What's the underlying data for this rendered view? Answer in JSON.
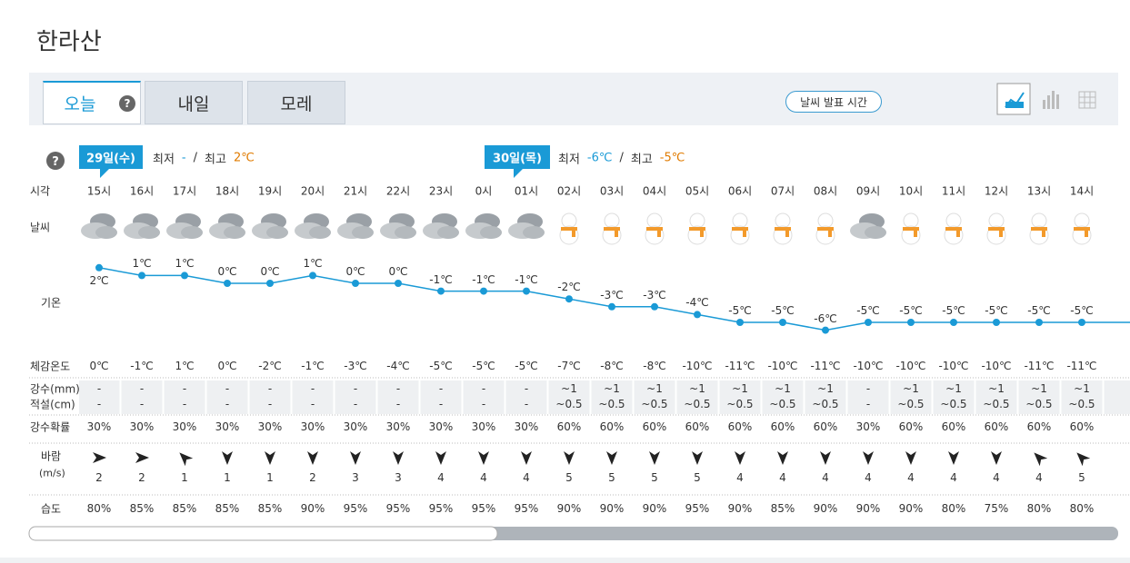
{
  "title": "한라산",
  "tabs": [
    "오늘",
    "내일",
    "모레"
  ],
  "announce_button": "날씨 발표 시간",
  "days": [
    {
      "date": "29일(수)",
      "min_label": "최저",
      "min": "-",
      "separator": "/",
      "max_label": "최고",
      "max": "2℃"
    },
    {
      "date": "30일(목)",
      "min_label": "최저",
      "min": "-6℃",
      "separator": "/",
      "max_label": "최고",
      "max": "-5℃"
    }
  ],
  "row_labels": {
    "time": "시각",
    "weather": "날씨",
    "temperature": "기온",
    "feels_like": "체감온도",
    "precipitation": "강수(mm)",
    "snowfall": "적설(cm)",
    "precip_probability": "강수확률",
    "wind": "바람",
    "wind_unit": "(m/s)",
    "humidity": "습도"
  },
  "hours": [
    "15시",
    "16시",
    "17시",
    "18시",
    "19시",
    "20시",
    "21시",
    "22시",
    "23시",
    "0시",
    "01시",
    "02시",
    "03시",
    "04시",
    "05시",
    "06시",
    "07시",
    "08시",
    "09시",
    "10시",
    "11시",
    "12시",
    "13시",
    "14시"
  ],
  "temperature": {
    "values": [
      2,
      1,
      1,
      0,
      0,
      1,
      0,
      0,
      -1,
      -1,
      -1,
      -2,
      -3,
      -3,
      -4,
      -5,
      -5,
      -6,
      -5,
      -5,
      -5,
      -5,
      -5,
      -5
    ],
    "value_labels": [
      "2℃",
      "1℃",
      "1℃",
      "0℃",
      "0℃",
      "1℃",
      "0℃",
      "0℃",
      "-1℃",
      "-1℃",
      "-1℃",
      "-2℃",
      "-3℃",
      "-3℃",
      "-4℃",
      "-5℃",
      "-5℃",
      "-6℃",
      "-5℃",
      "-5℃",
      "-5℃",
      "-5℃",
      "-5℃",
      "-5℃"
    ]
  },
  "feels_like": [
    "0℃",
    "-1℃",
    "1℃",
    "0℃",
    "-2℃",
    "-1℃",
    "-3℃",
    "-4℃",
    "-5℃",
    "-5℃",
    "-5℃",
    "-7℃",
    "-8℃",
    "-8℃",
    "-10℃",
    "-11℃",
    "-10℃",
    "-11℃",
    "-10℃",
    "-10℃",
    "-10℃",
    "-10℃",
    "-11℃",
    "-11℃"
  ],
  "precipitation": [
    "-",
    "-",
    "-",
    "-",
    "-",
    "-",
    "-",
    "-",
    "-",
    "-",
    "-",
    "~1",
    "~1",
    "~1",
    "~1",
    "~1",
    "~1",
    "~1",
    "-",
    "~1",
    "~1",
    "~1",
    "~1",
    "~1"
  ],
  "snowfall": [
    "-",
    "-",
    "-",
    "-",
    "-",
    "-",
    "-",
    "-",
    "-",
    "-",
    "-",
    "~0.5",
    "~0.5",
    "~0.5",
    "~0.5",
    "~0.5",
    "~0.5",
    "~0.5",
    "-",
    "~0.5",
    "~0.5",
    "~0.5",
    "~0.5",
    "~0.5"
  ],
  "precip_probability": [
    "30%",
    "30%",
    "30%",
    "30%",
    "30%",
    "30%",
    "30%",
    "30%",
    "30%",
    "30%",
    "30%",
    "60%",
    "60%",
    "60%",
    "60%",
    "60%",
    "60%",
    "60%",
    "30%",
    "60%",
    "60%",
    "60%",
    "60%",
    "60%"
  ],
  "wind_speed": [
    2,
    2,
    1,
    1,
    1,
    2,
    3,
    3,
    4,
    4,
    4,
    5,
    5,
    5,
    5,
    4,
    4,
    4,
    4,
    4,
    4,
    4,
    4,
    5
  ],
  "humidity": [
    "80%",
    "85%",
    "85%",
    "85%",
    "85%",
    "90%",
    "95%",
    "95%",
    "95%",
    "95%",
    "95%",
    "90%",
    "90%",
    "90%",
    "95%",
    "90%",
    "85%",
    "90%",
    "90%",
    "90%",
    "80%",
    "75%",
    "80%",
    "80%"
  ]
}
